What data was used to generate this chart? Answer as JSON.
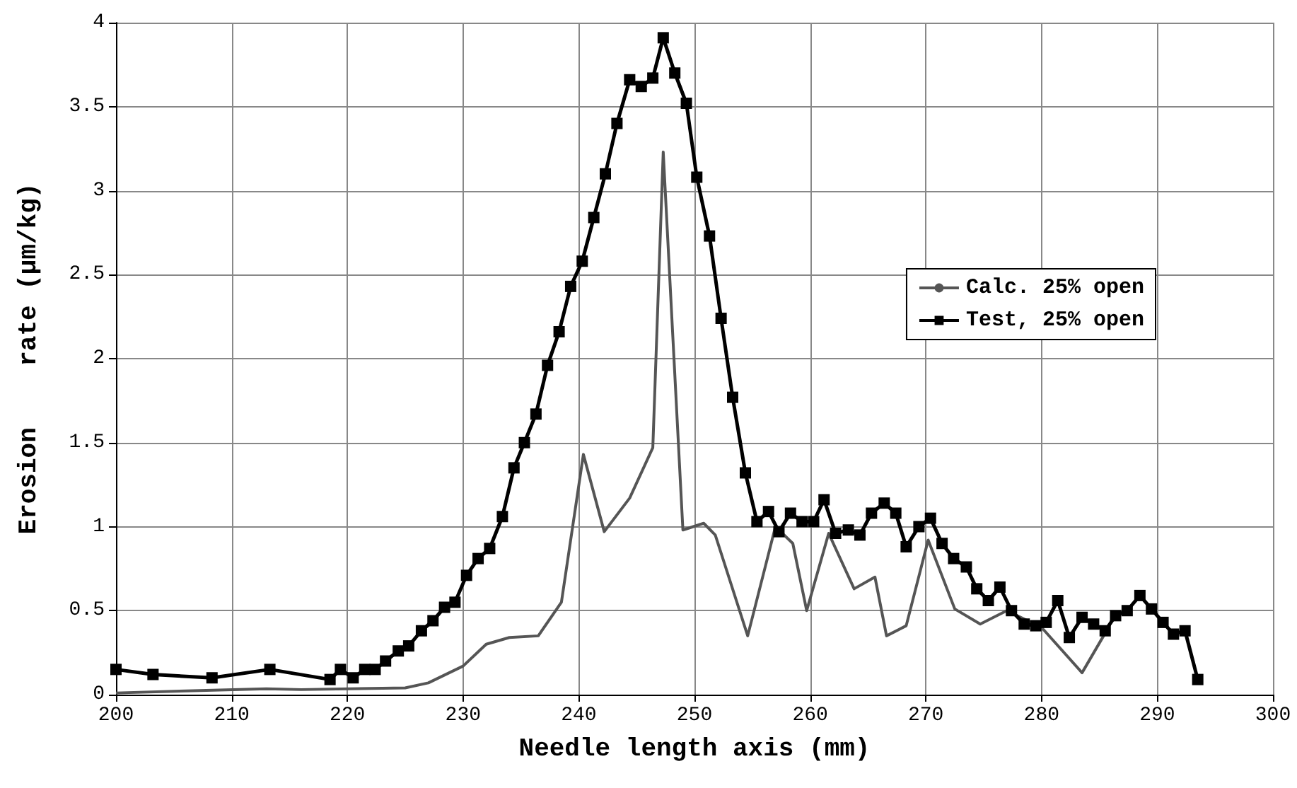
{
  "chart_data": {
    "type": "line",
    "xlabel": "Needle length axis (mm)",
    "ylabel": "Erosion    rate (µm/kg)",
    "xlim": [
      200,
      300
    ],
    "xticks": [
      200,
      210,
      220,
      230,
      240,
      250,
      260,
      270,
      280,
      290,
      300
    ],
    "ylim": [
      0,
      4
    ],
    "yticks": [
      0,
      0.5,
      1,
      1.5,
      2,
      2.5,
      3,
      3.5,
      4
    ],
    "grid": true,
    "legend": "right",
    "series": [
      {
        "name": "Calc. 25% open",
        "color": "#555555",
        "marker": "none",
        "x": [
          200,
          213,
          216,
          225,
          227,
          230,
          232,
          234,
          236.5,
          238.5,
          240.4,
          242.2,
          244.4,
          246.4,
          247.3,
          249,
          250.8,
          251.8,
          254.6,
          257,
          258.5,
          259.7,
          261.6,
          263.8,
          265.6,
          266.6,
          268.3,
          270.2,
          272.5,
          274.7,
          277,
          280,
          283.5,
          285.7
        ],
        "values": [
          0.01,
          0.035,
          0.03,
          0.04,
          0.07,
          0.17,
          0.3,
          0.34,
          0.35,
          0.55,
          1.43,
          0.97,
          1.17,
          1.47,
          3.23,
          0.98,
          1.02,
          0.95,
          0.35,
          1.0,
          0.9,
          0.5,
          0.96,
          0.63,
          0.7,
          0.35,
          0.41,
          0.92,
          0.51,
          0.42,
          0.5,
          0.4,
          0.13,
          0.39
        ]
      },
      {
        "name": "Test, 25% open",
        "color": "#000000",
        "marker": "square",
        "x": [
          200,
          203.2,
          208.3,
          213.3,
          218.5,
          219.4,
          220.5,
          221.5,
          222.4,
          223.3,
          224.4,
          225.3,
          226.4,
          227.4,
          228.4,
          229.3,
          230.3,
          231.3,
          232.3,
          233.4,
          234.4,
          235.3,
          236.3,
          237.3,
          238.3,
          239.3,
          240.3,
          241.3,
          242.3,
          243.3,
          244.4,
          245.4,
          246.4,
          247.3,
          248.3,
          249.3,
          250.2,
          251.3,
          252.3,
          253.3,
          254.4,
          255.4,
          256.4,
          257.3,
          258.3,
          259.3,
          260.3,
          261.2,
          262.2,
          263.3,
          264.3,
          265.3,
          266.4,
          267.4,
          268.3,
          269.4,
          270.4,
          271.4,
          272.4,
          273.5,
          274.4,
          275.4,
          276.4,
          277.4,
          278.5,
          279.5,
          280.4,
          281.4,
          282.4,
          283.5,
          284.5,
          285.5,
          286.4,
          287.4,
          288.5,
          289.5,
          290.5,
          291.4,
          292.4,
          293.5
        ],
        "values": [
          0.15,
          0.12,
          0.1,
          0.15,
          0.09,
          0.15,
          0.1,
          0.15,
          0.15,
          0.2,
          0.26,
          0.29,
          0.38,
          0.44,
          0.52,
          0.55,
          0.71,
          0.81,
          0.87,
          1.06,
          1.35,
          1.5,
          1.67,
          1.96,
          2.16,
          2.43,
          2.58,
          2.84,
          3.1,
          3.4,
          3.66,
          3.62,
          3.67,
          3.91,
          3.7,
          3.52,
          3.08,
          2.73,
          2.24,
          1.77,
          1.32,
          1.03,
          1.09,
          0.97,
          1.08,
          1.03,
          1.03,
          1.16,
          0.96,
          0.98,
          0.95,
          1.08,
          1.14,
          1.08,
          0.88,
          1.0,
          1.05,
          0.9,
          0.81,
          0.76,
          0.63,
          0.56,
          0.64,
          0.5,
          0.42,
          0.41,
          0.43,
          0.56,
          0.34,
          0.46,
          0.42,
          0.38,
          0.47,
          0.5,
          0.59,
          0.51,
          0.43,
          0.36,
          0.38,
          0.09
        ]
      }
    ]
  }
}
